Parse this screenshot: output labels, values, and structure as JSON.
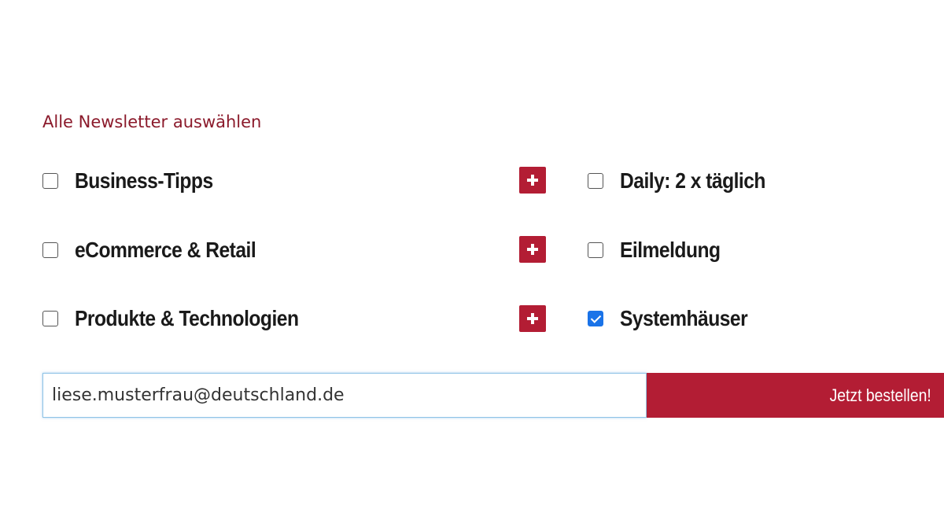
{
  "form": {
    "select_all_label": "Alle Newsletter auswählen",
    "left_options": [
      {
        "label": "Business-Tipps",
        "checked": false
      },
      {
        "label": "eCommerce & Retail",
        "checked": false
      },
      {
        "label": "Produkte & Technologien",
        "checked": false
      }
    ],
    "right_options": [
      {
        "label": "Daily: 2 x täglich",
        "checked": false
      },
      {
        "label": "Eilmeldung",
        "checked": false
      },
      {
        "label": "Systemhäuser",
        "checked": true
      }
    ],
    "expand_icon": "plus-icon",
    "email_value": "liese.musterfrau@deutschland.de",
    "submit_label": "Jetzt bestellen!"
  },
  "colors": {
    "accent": "#b31d34",
    "link": "#8b1a2b",
    "checkbox_checked": "#1a73e8"
  }
}
